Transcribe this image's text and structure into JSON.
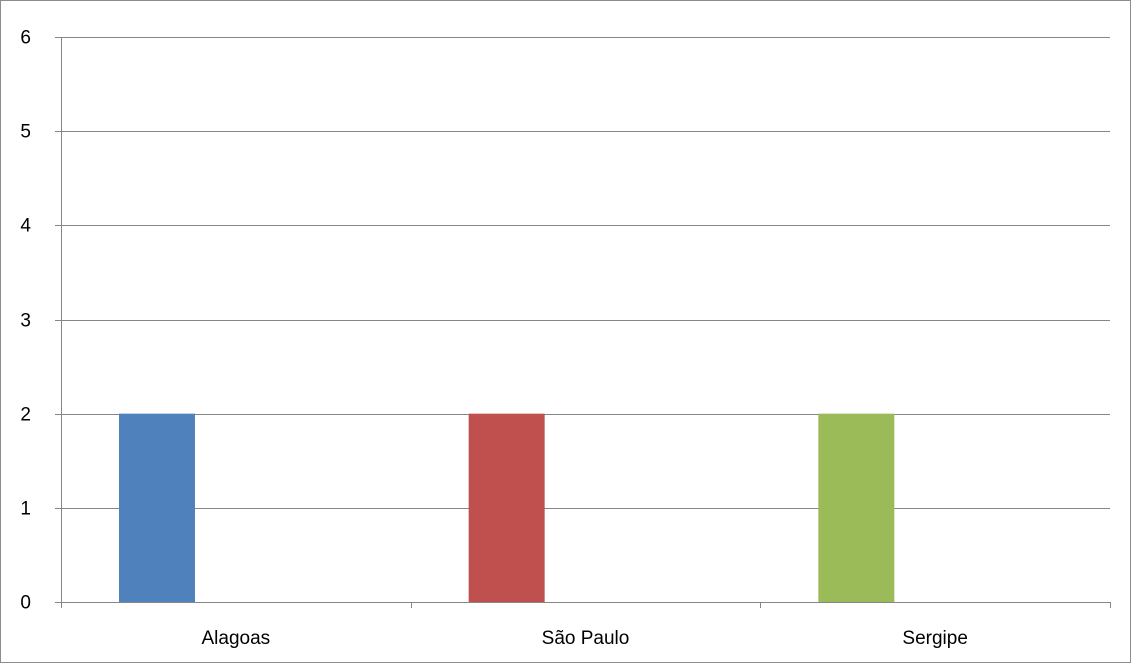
{
  "chart_data": {
    "type": "bar",
    "title": "",
    "xlabel": "",
    "ylabel": "",
    "categories": [
      "Alagoas",
      "São Paulo",
      "Sergipe"
    ],
    "values": [
      2,
      2,
      2
    ],
    "bar_colors": [
      "#4f81bd",
      "#c0504d",
      "#9bbb59"
    ],
    "ylim": [
      0,
      6
    ],
    "yticks": [
      0,
      1,
      2,
      3,
      4,
      5,
      6
    ],
    "grid": true,
    "legend": "none",
    "gridline_color": "#868686"
  }
}
